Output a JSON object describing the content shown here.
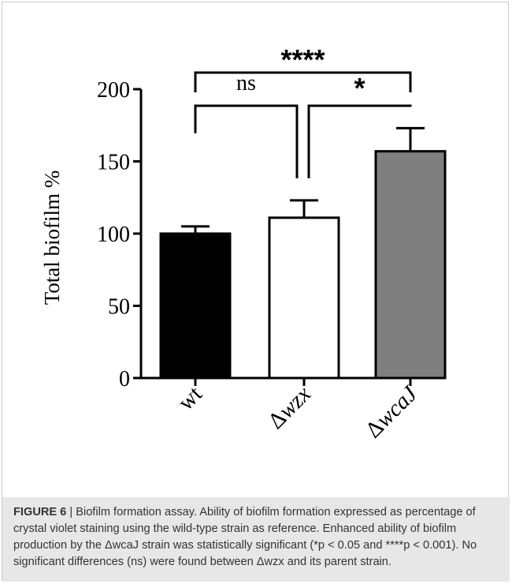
{
  "figure": {
    "caption_label": "FIGURE 6",
    "caption_separator": " | ",
    "caption_text": "Biofilm formation assay. Ability of biofilm formation expressed as percentage of crystal violet staining using the wild-type strain as reference. Enhanced ability of biofilm production by the ΔwcaJ strain was statistically significant (*p < 0.05 and ****p < 0.001). No significant differences (ns) were found between Δwzx and its parent strain."
  },
  "chart_data": {
    "type": "bar",
    "title": "",
    "xlabel": "",
    "ylabel": "Total biofilm %",
    "ylim": [
      0,
      200
    ],
    "yticks": [
      0,
      50,
      100,
      150,
      200
    ],
    "categories": [
      {
        "prefix": "",
        "name": "wt"
      },
      {
        "prefix": "Δ",
        "name": "wzx"
      },
      {
        "prefix": "Δ",
        "name": "wcaJ"
      }
    ],
    "values": [
      100,
      111,
      157
    ],
    "error_upper": [
      5,
      12,
      16
    ],
    "bar_colors": [
      "#000000",
      "#ffffff",
      "#7f7f7f"
    ],
    "significance": [
      {
        "from": 0,
        "to": 1,
        "label": "ns"
      },
      {
        "from": 1,
        "to": 2,
        "label": "*"
      },
      {
        "from": 0,
        "to": 2,
        "label": "****"
      }
    ],
    "grid": false,
    "legend": "none"
  }
}
